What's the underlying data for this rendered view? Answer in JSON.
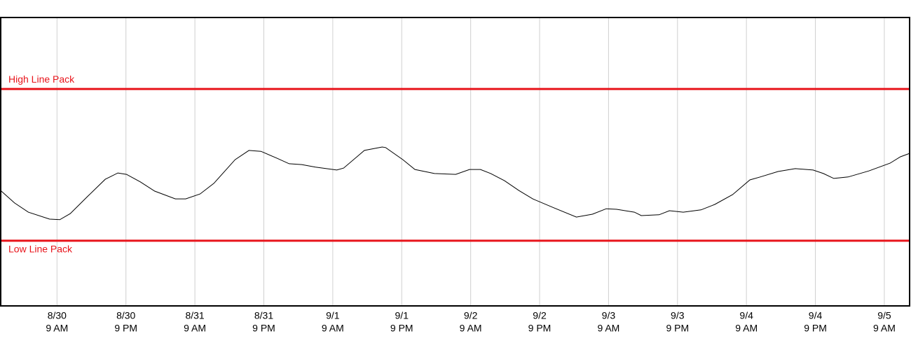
{
  "chart_data": {
    "type": "line",
    "x": [
      -9.8,
      -7.4,
      -5.0,
      -1.3,
      0.5,
      2.3,
      5.4,
      8.4,
      10.6,
      12.1,
      14.5,
      17.0,
      20.6,
      22.4,
      24.9,
      27.3,
      31.0,
      33.4,
      35.5,
      38.3,
      40.4,
      42.6,
      45.0,
      48.7,
      49.9,
      53.5,
      56.6,
      57.2,
      60.2,
      62.3,
      65.7,
      69.4,
      71.8,
      73.7,
      75.5,
      77.9,
      80.4,
      82.8,
      86.5,
      90.4,
      93.2,
      95.6,
      97.4,
      100.5,
      101.7,
      104.8,
      106.6,
      109.0,
      112.1,
      114.5,
      117.6,
      120.6,
      122.4,
      125.5,
      128.5,
      131.6,
      133.4,
      135.2,
      137.7,
      141.3,
      145.0,
      146.8,
      148.4
    ],
    "values": [
      40.0,
      35.7,
      32.5,
      30.1,
      29.9,
      32.0,
      38.1,
      43.9,
      46.1,
      45.6,
      43.0,
      39.8,
      37.1,
      37.1,
      38.8,
      42.5,
      50.7,
      53.9,
      53.6,
      51.2,
      49.3,
      49.0,
      48.1,
      47.1,
      47.8,
      53.9,
      55.1,
      54.9,
      50.7,
      47.3,
      45.9,
      45.6,
      47.3,
      47.3,
      45.9,
      43.4,
      40.0,
      37.1,
      34.0,
      30.8,
      31.8,
      33.7,
      33.5,
      32.5,
      31.3,
      31.6,
      33.0,
      32.5,
      33.3,
      35.2,
      38.6,
      43.7,
      44.7,
      46.6,
      47.6,
      47.1,
      45.9,
      44.2,
      44.7,
      46.8,
      49.5,
      51.7,
      52.9
    ],
    "color": "#000000",
    "xlim": [
      -9.8,
      148.4
    ],
    "ylim": [
      0,
      100
    ],
    "xticks": [
      {
        "value": 0,
        "label": [
          "8/30",
          "9 AM"
        ]
      },
      {
        "value": 12,
        "label": [
          "8/30",
          "9 PM"
        ]
      },
      {
        "value": 24,
        "label": [
          "8/31",
          "9 AM"
        ]
      },
      {
        "value": 36,
        "label": [
          "8/31",
          "9 PM"
        ]
      },
      {
        "value": 48,
        "label": [
          "9/1",
          "9 AM"
        ]
      },
      {
        "value": 60,
        "label": [
          "9/1",
          "9 PM"
        ]
      },
      {
        "value": 72,
        "label": [
          "9/2",
          "9 AM"
        ]
      },
      {
        "value": 84,
        "label": [
          "9/2",
          "9 PM"
        ]
      },
      {
        "value": 96,
        "label": [
          "9/3",
          "9 AM"
        ]
      },
      {
        "value": 108,
        "label": [
          "9/3",
          "9 PM"
        ]
      },
      {
        "value": 120,
        "label": [
          "9/4",
          "9 AM"
        ]
      },
      {
        "value": 132,
        "label": [
          "9/4",
          "9 PM"
        ]
      },
      {
        "value": 144,
        "label": [
          "9/5",
          "9 AM"
        ]
      }
    ],
    "grid": true,
    "reference_lines": [
      {
        "label": "High Line Pack",
        "value": 75.2,
        "color": "#e8141b"
      },
      {
        "label": "Low Line Pack",
        "value": 22.6,
        "color": "#e8141b"
      }
    ]
  }
}
